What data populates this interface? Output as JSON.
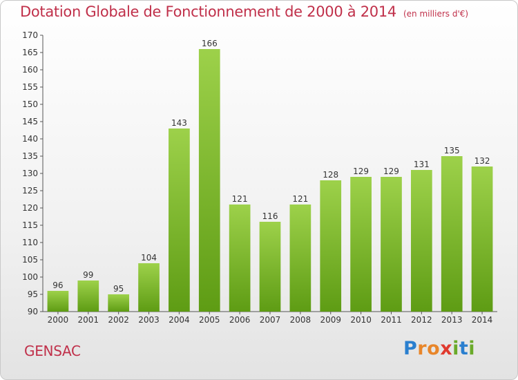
{
  "title": "Dotation Globale de Fonctionnement de 2000 à 2014",
  "subtitle": "(en milliers d'€)",
  "commune": "GENSAC",
  "logo": [
    "P",
    "r",
    "o",
    "x",
    "i",
    "t",
    "i"
  ],
  "colors": {
    "title": "#c0304a",
    "bar_light": "#9dd14a",
    "bar_dark": "#5e9c14"
  },
  "chart_data": {
    "type": "bar",
    "title": "Dotation Globale de Fonctionnement de 2000 à 2014",
    "subtitle": "(en milliers d'€)",
    "categories": [
      "2000",
      "2001",
      "2002",
      "2003",
      "2004",
      "2005",
      "2006",
      "2007",
      "2008",
      "2009",
      "2010",
      "2011",
      "2012",
      "2013",
      "2014"
    ],
    "values": [
      96,
      99,
      95,
      104,
      143,
      166,
      121,
      116,
      121,
      128,
      129,
      129,
      131,
      135,
      132
    ],
    "ylim": [
      90,
      170
    ],
    "yticks": [
      90,
      95,
      100,
      105,
      110,
      115,
      120,
      125,
      130,
      135,
      140,
      145,
      150,
      155,
      160,
      165,
      170
    ],
    "grid": false,
    "xlabel": "",
    "ylabel": ""
  }
}
